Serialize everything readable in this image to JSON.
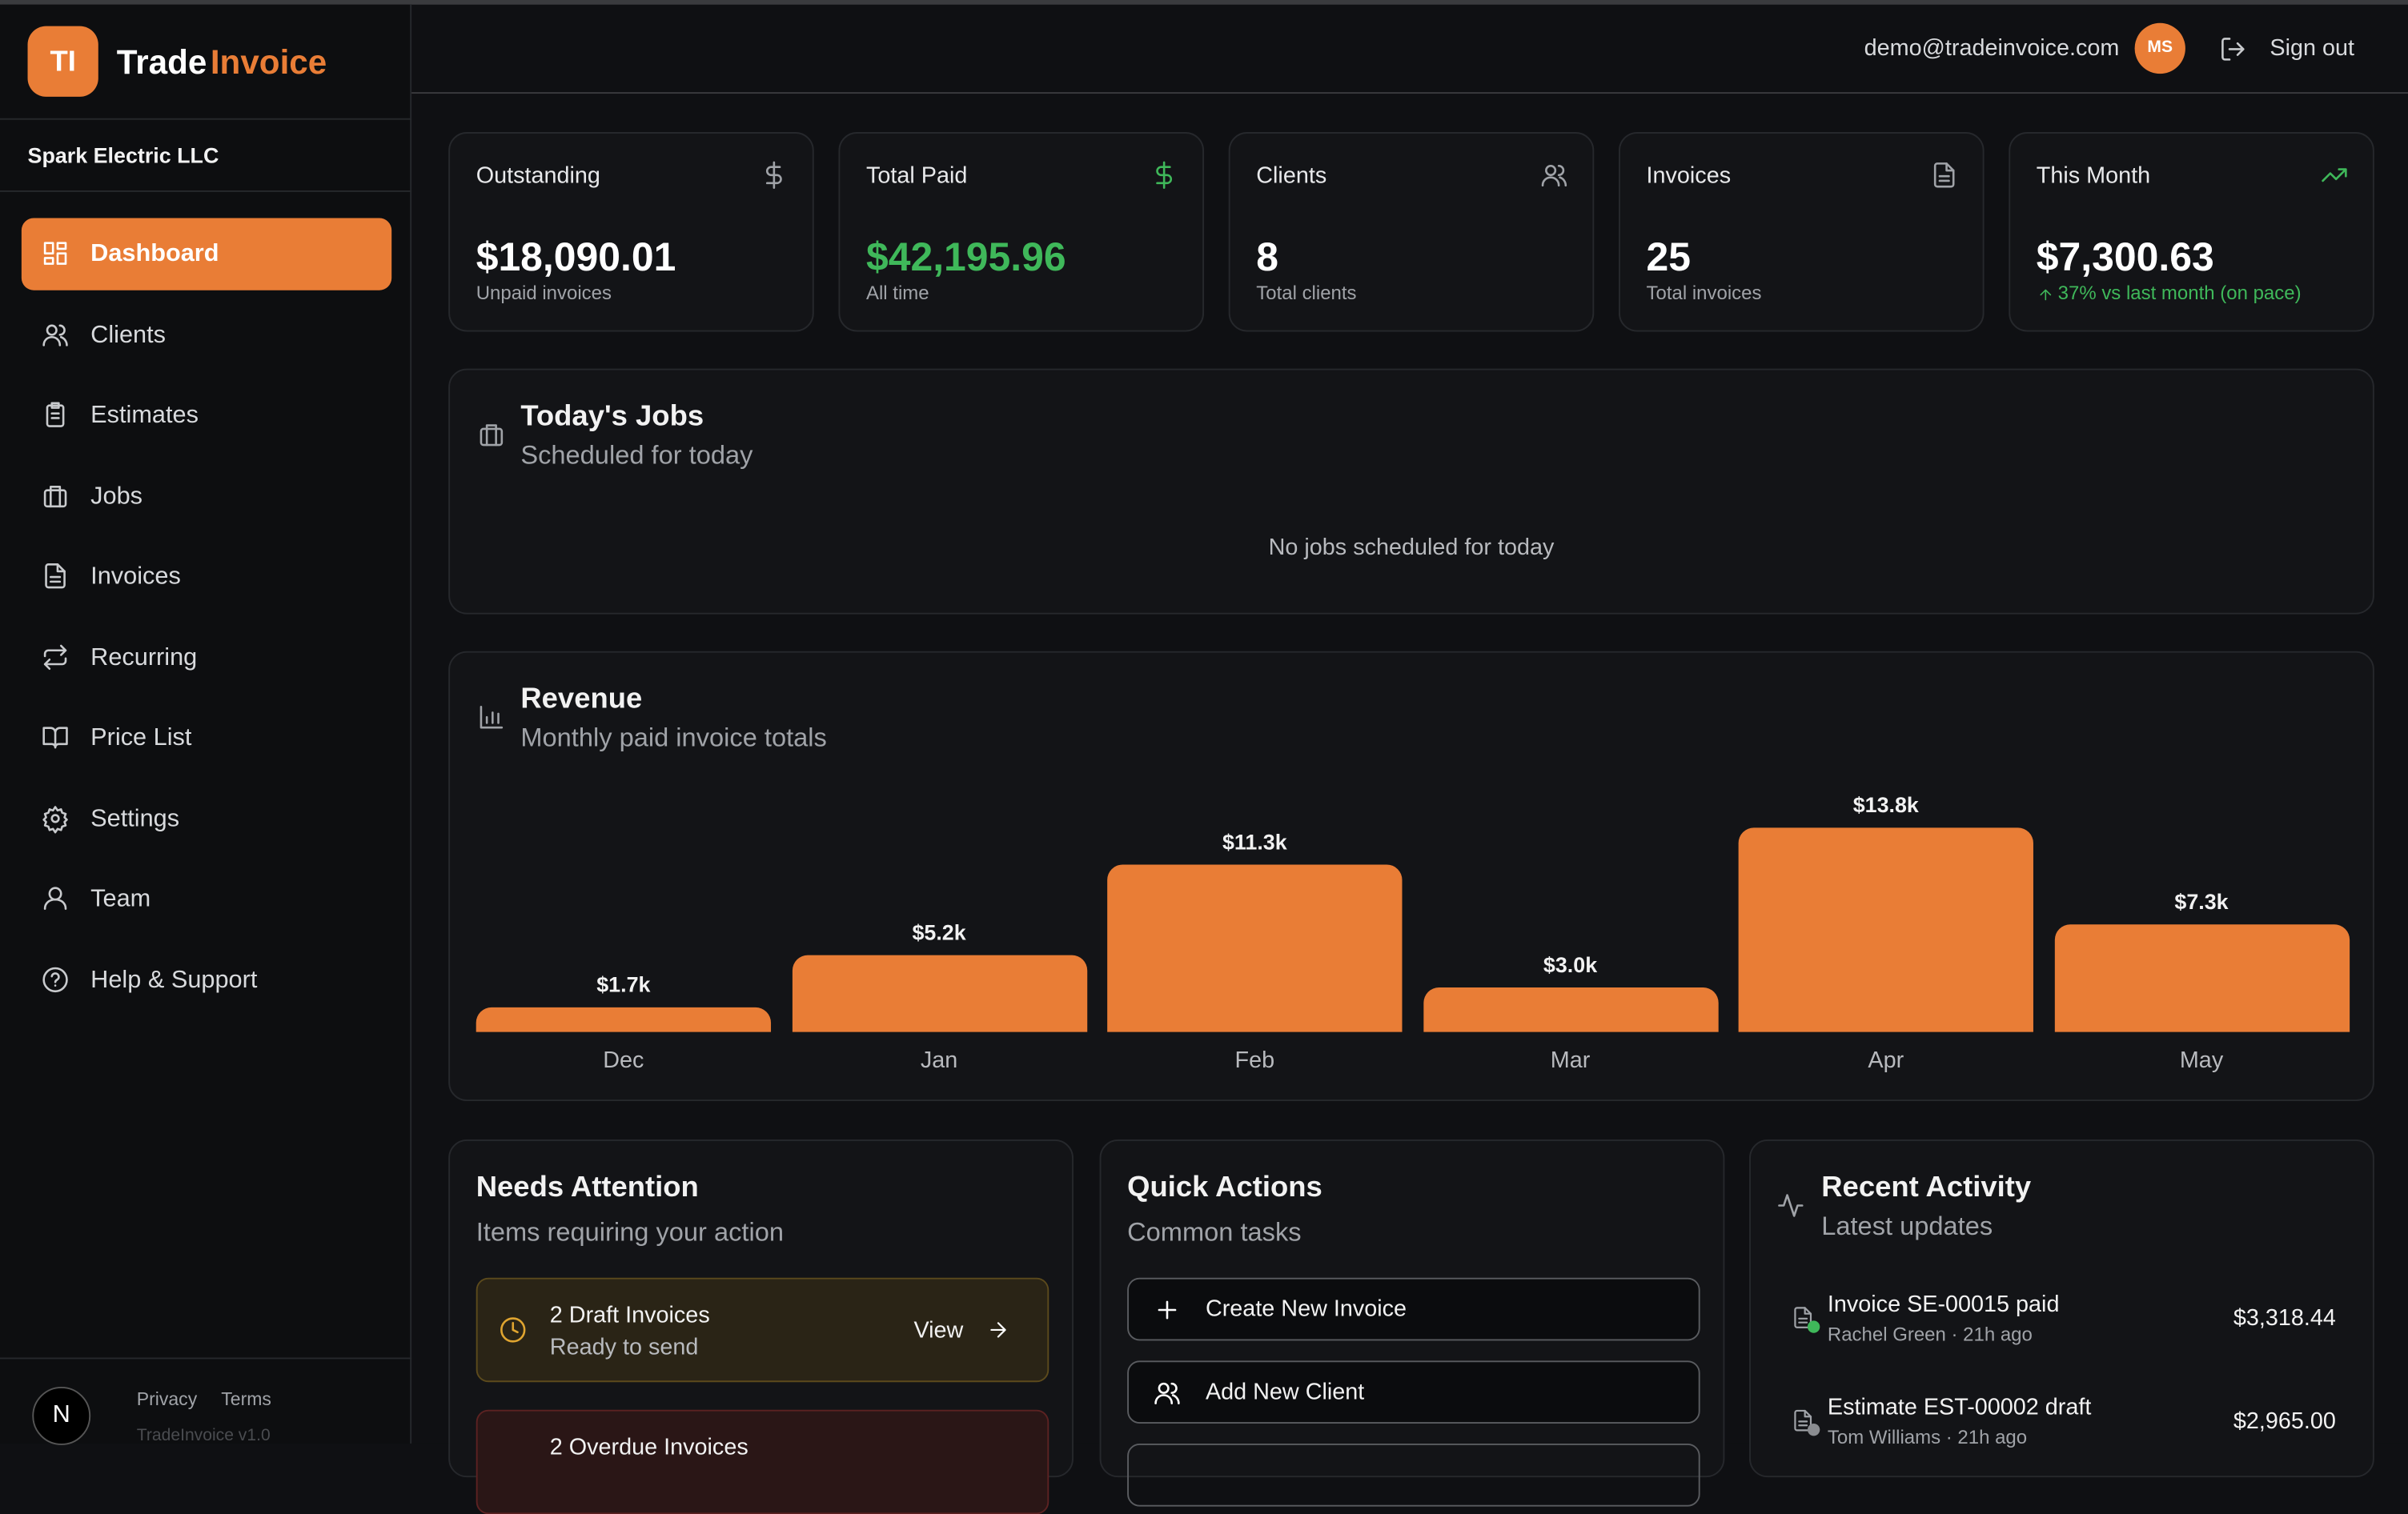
{
  "brand": {
    "logo": "TI",
    "name_part1": "Trade",
    "name_part2": "Invoice"
  },
  "company": "Spark Electric LLC",
  "nav": [
    "Dashboard",
    "Clients",
    "Estimates",
    "Jobs",
    "Invoices",
    "Recurring",
    "Price List",
    "Settings",
    "Team",
    "Help & Support"
  ],
  "footer": {
    "avatar": "N",
    "links": [
      "Privacy",
      "Terms"
    ],
    "version": "TradeInvoice v1.0"
  },
  "header": {
    "email": "demo@tradeinvoice.com",
    "avatar": "MS",
    "sign_out": "Sign out"
  },
  "stats": [
    {
      "label": "Outstanding",
      "value": "$18,090.01",
      "sub": "Unpaid invoices"
    },
    {
      "label": "Total Paid",
      "value": "$42,195.96",
      "sub": "All time"
    },
    {
      "label": "Clients",
      "value": "8",
      "sub": "Total clients"
    },
    {
      "label": "Invoices",
      "value": "25",
      "sub": "Total invoices"
    },
    {
      "label": "This Month",
      "value": "$7,300.63",
      "sub": "37% vs last month (on pace)"
    }
  ],
  "todays_jobs": {
    "title": "Today's Jobs",
    "subtitle": "Scheduled for today",
    "empty": "No jobs scheduled for today"
  },
  "revenue": {
    "type": "bar",
    "title": "Revenue",
    "subtitle": "Monthly paid invoice totals",
    "categories": [
      "Dec",
      "Jan",
      "Feb",
      "Mar",
      "Apr",
      "May"
    ],
    "values": [
      1.7,
      5.2,
      11.3,
      3.0,
      13.8,
      7.3
    ],
    "value_labels": [
      "$1.7k",
      "$5.2k",
      "$11.3k",
      "$3.0k",
      "$13.8k",
      "$7.3k"
    ],
    "color": "#e97d36"
  },
  "needs_attention": {
    "title": "Needs Attention",
    "subtitle": "Items requiring your action",
    "items": [
      {
        "title": "2 Draft Invoices",
        "subtitle": "Ready to send",
        "action": "View"
      },
      {
        "title": "2 Overdue Invoices"
      }
    ]
  },
  "quick_actions": {
    "title": "Quick Actions",
    "subtitle": "Common tasks",
    "actions": [
      "Create New Invoice",
      "Add New Client"
    ]
  },
  "recent_activity": {
    "title": "Recent Activity",
    "subtitle": "Latest updates",
    "items": [
      {
        "title": "Invoice SE-00015 paid",
        "meta": "Rachel Green · 21h ago",
        "amount": "$3,318.44"
      },
      {
        "title": "Estimate EST-00002 draft",
        "meta": "Tom Williams · 21h ago",
        "amount": "$2,965.00"
      }
    ]
  }
}
